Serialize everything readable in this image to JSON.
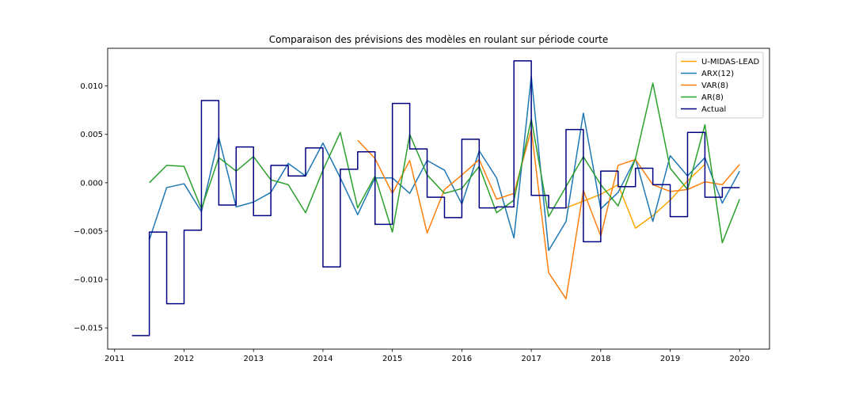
{
  "chart_data": {
    "type": "line",
    "title": "Comparaison des prévisions des modèles en roulant sur période courte",
    "xlabel": "",
    "ylabel": "",
    "xlim": [
      2010.9,
      2020.43
    ],
    "ylim": [
      -0.0172,
      0.0139
    ],
    "x_ticks": [
      2011,
      2012,
      2013,
      2014,
      2015,
      2016,
      2017,
      2018,
      2019,
      2020
    ],
    "x_tick_labels": [
      "2011",
      "2012",
      "2013",
      "2014",
      "2015",
      "2016",
      "2017",
      "2018",
      "2019",
      "2020"
    ],
    "y_ticks": [
      -0.015,
      -0.01,
      -0.005,
      0.0,
      0.005,
      0.01
    ],
    "y_tick_labels": [
      "−0.015",
      "−0.010",
      "−0.005",
      "0.000",
      "0.005",
      "0.010"
    ],
    "grid": false,
    "legend_position": "top-right",
    "series": [
      {
        "name": "U-MIDAS-LEAD",
        "color": "#ffa500",
        "x": [
          2017.5,
          2017.75,
          2018.0,
          2018.25,
          2018.5,
          2018.75,
          2019.0,
          2019.25,
          2019.5
        ],
        "y": [
          -0.0026,
          -0.0019,
          -0.0012,
          -0.0002,
          -0.0047,
          -0.0034,
          -0.0018,
          0.0002,
          0.0019
        ]
      },
      {
        "name": "ARX(12)",
        "color": "#1f77b4",
        "x": [
          2011.5,
          2011.75,
          2012.0,
          2012.25,
          2012.5,
          2012.75,
          2013.0,
          2013.25,
          2013.5,
          2013.75,
          2014.0,
          2014.25,
          2014.5,
          2014.75,
          2015.0,
          2015.25,
          2015.5,
          2015.75,
          2016.0,
          2016.25,
          2016.5,
          2016.75,
          2017.0,
          2017.25,
          2017.5,
          2017.75,
          2018.0,
          2018.25,
          2018.5,
          2018.75,
          2019.0,
          2019.25,
          2019.5,
          2019.75,
          2020.0
        ],
        "y": [
          -0.0059,
          -0.0005,
          -0.0001,
          -0.003,
          0.0047,
          -0.0025,
          -0.002,
          -0.001,
          0.002,
          0.0007,
          0.0041,
          0.0005,
          -0.0033,
          0.0005,
          0.0005,
          -0.0011,
          0.0023,
          0.0013,
          -0.0022,
          0.0033,
          0.0005,
          -0.0057,
          0.011,
          -0.007,
          -0.004,
          0.0072,
          -0.0027,
          -0.001,
          0.0025,
          -0.004,
          0.0028,
          0.0007,
          0.0026,
          -0.0021,
          0.0012
        ]
      },
      {
        "name": "VAR(8)",
        "color": "#ff7f0e",
        "x": [
          2014.5,
          2014.75,
          2015.0,
          2015.25,
          2015.5,
          2015.75,
          2016.0,
          2016.25,
          2016.5,
          2016.75,
          2017.0,
          2017.25,
          2017.5,
          2017.75,
          2018.0,
          2018.25,
          2018.5,
          2018.75,
          2019.0,
          2019.25,
          2019.5,
          2019.75,
          2020.0
        ],
        "y": [
          0.0044,
          0.0025,
          -0.0011,
          0.0023,
          -0.0052,
          -0.0007,
          0.0008,
          0.0024,
          -0.0017,
          -0.0011,
          0.0055,
          -0.0093,
          -0.012,
          -0.0008,
          -0.0055,
          0.0018,
          0.0024,
          -0.0002,
          -0.0009,
          -0.0007,
          0.0001,
          -0.0002,
          0.0019
        ]
      },
      {
        "name": "AR(8)",
        "color": "#2ca02c",
        "x": [
          2011.5,
          2011.75,
          2012.0,
          2012.25,
          2012.5,
          2012.75,
          2013.0,
          2013.25,
          2013.5,
          2013.75,
          2014.0,
          2014.25,
          2014.5,
          2014.75,
          2015.0,
          2015.25,
          2015.5,
          2015.75,
          2016.0,
          2016.25,
          2016.5,
          2016.75,
          2017.0,
          2017.25,
          2017.5,
          2017.75,
          2018.0,
          2018.25,
          2018.5,
          2018.75,
          2019.0,
          2019.25,
          2019.5,
          2019.75,
          2020.0
        ],
        "y": [
          0.0,
          0.0018,
          0.0017,
          -0.0027,
          0.0026,
          0.0012,
          0.0027,
          0.0003,
          -0.0002,
          -0.0031,
          0.0013,
          0.0052,
          -0.0026,
          0.0007,
          -0.0051,
          0.005,
          0.0008,
          -0.0011,
          -0.0006,
          0.0017,
          -0.0031,
          -0.0018,
          0.0066,
          -0.0035,
          -0.0004,
          0.0027,
          -0.0002,
          -0.0024,
          0.0025,
          0.0103,
          0.0015,
          -0.0007,
          0.006,
          -0.0062,
          -0.0017
        ]
      },
      {
        "name": "Actual",
        "color": "#000080",
        "x": [
          2011.25,
          2011.5,
          2011.5,
          2011.75,
          2011.75,
          2012.0,
          2012.0,
          2012.25,
          2012.25,
          2012.5,
          2012.5,
          2012.75,
          2012.75,
          2013.0,
          2013.0,
          2013.25,
          2013.25,
          2013.5,
          2013.5,
          2013.75,
          2013.75,
          2014.0,
          2014.0,
          2014.25,
          2014.25,
          2014.5,
          2014.5,
          2014.75,
          2014.75,
          2015.0,
          2015.0,
          2015.25,
          2015.25,
          2015.5,
          2015.5,
          2015.75,
          2015.75,
          2016.0,
          2016.0,
          2016.25,
          2016.25,
          2016.5,
          2016.5,
          2016.75,
          2016.75,
          2017.0,
          2017.0,
          2017.25,
          2017.25,
          2017.5,
          2017.5,
          2017.75,
          2017.75,
          2018.0,
          2018.0,
          2018.25,
          2018.25,
          2018.5,
          2018.5,
          2018.75,
          2018.75,
          2019.0,
          2019.0,
          2019.25,
          2019.25,
          2019.5,
          2019.5,
          2019.75,
          2019.75,
          2020.0
        ],
        "y": [
          -0.0158,
          -0.0158,
          -0.0051,
          -0.0051,
          -0.0125,
          -0.0125,
          -0.0049,
          -0.0049,
          0.0085,
          0.0085,
          -0.0023,
          -0.0023,
          0.0037,
          0.0037,
          -0.0034,
          -0.0034,
          0.0018,
          0.0018,
          0.0007,
          0.0007,
          0.0036,
          0.0036,
          -0.0087,
          -0.0087,
          0.0014,
          0.0014,
          0.0032,
          0.0032,
          -0.0043,
          -0.0043,
          0.0082,
          0.0082,
          0.0035,
          0.0035,
          -0.0015,
          -0.0015,
          -0.0036,
          -0.0036,
          0.0045,
          0.0045,
          -0.0026,
          -0.0026,
          -0.0025,
          -0.0025,
          0.0126,
          0.0126,
          -0.0013,
          -0.0013,
          -0.0026,
          -0.0026,
          0.0055,
          0.0055,
          -0.0061,
          -0.0061,
          0.0012,
          0.0012,
          -0.0004,
          -0.0004,
          0.0015,
          0.0015,
          -0.0002,
          -0.0002,
          -0.0035,
          -0.0035,
          0.0052,
          0.0052,
          -0.0015,
          -0.0015,
          -0.0005,
          -0.0005
        ]
      }
    ]
  }
}
